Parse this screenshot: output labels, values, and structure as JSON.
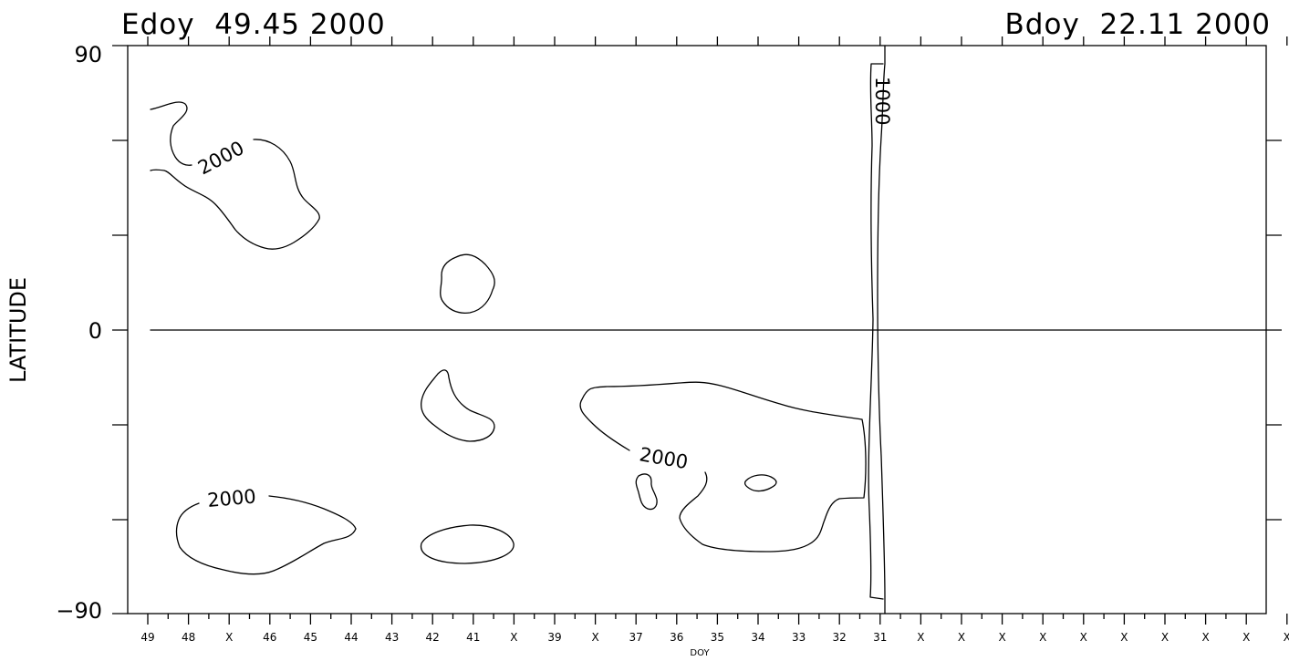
{
  "chart_data": {
    "type": "contour",
    "header_left": "Edoy  49.45 2000",
    "header_right": "Bdoy  22.11 2000",
    "ylabel": "LATITUDE",
    "xlabel": "DOY",
    "ylim": [
      -90,
      90
    ],
    "y_tick_labels": [
      "90",
      "0",
      "−90"
    ],
    "x_tick_labels": [
      "49",
      "48",
      "X",
      "46",
      "45",
      "44",
      "43",
      "42",
      "41",
      "X",
      "39",
      "X",
      "37",
      "36",
      "35",
      "34",
      "33",
      "32",
      "31",
      "X",
      "X",
      "X",
      "X",
      "X",
      "X",
      "X",
      "X",
      "X",
      "X"
    ],
    "contour_levels": [
      1000,
      2000
    ],
    "contour_labels": [
      "2000",
      "2000",
      "2000",
      "1000"
    ]
  }
}
